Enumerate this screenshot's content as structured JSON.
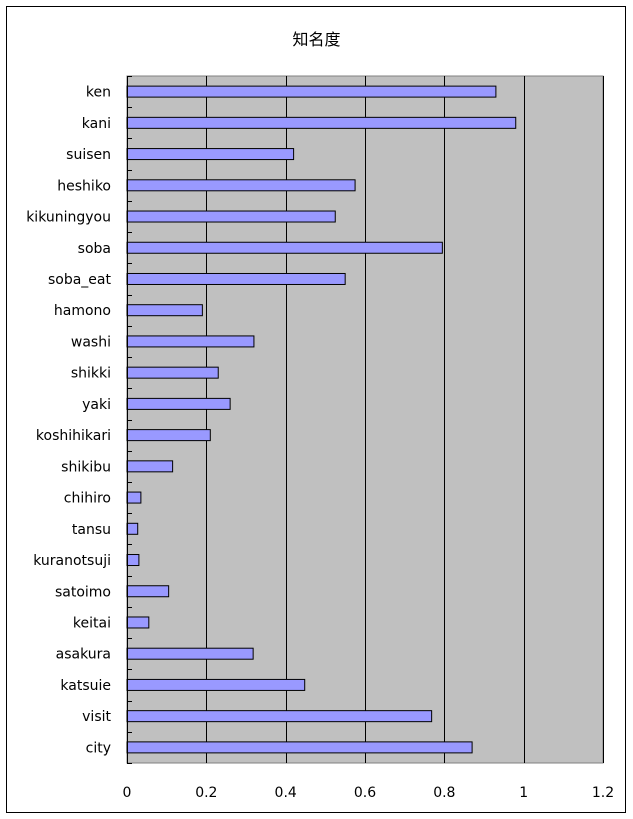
{
  "chart_data": {
    "type": "bar",
    "orientation": "horizontal",
    "title": "知名度",
    "categories": [
      "ken",
      "kani",
      "suisen",
      "heshiko",
      "kikuningyou",
      "soba",
      "soba_eat",
      "hamono",
      "washi",
      "shikki",
      "yaki",
      "koshihikari",
      "shikibu",
      "chihiro",
      "tansu",
      "kuranotsuji",
      "satoimo",
      "keitai",
      "asakura",
      "katsuie",
      "visit",
      "city"
    ],
    "values": [
      0.93,
      0.98,
      0.42,
      0.575,
      0.525,
      0.795,
      0.55,
      0.19,
      0.32,
      0.23,
      0.26,
      0.21,
      0.115,
      0.035,
      0.027,
      0.03,
      0.105,
      0.055,
      0.318,
      0.448,
      0.768,
      0.87
    ],
    "xlim": [
      0,
      1.2
    ],
    "xticks": [
      "0",
      "0.2",
      "0.4",
      "0.6",
      "0.8",
      "1",
      "1.2"
    ],
    "xlabel": "",
    "ylabel": "",
    "grid": true,
    "legend": "none",
    "colors": {
      "bar_fill": "#9999ff",
      "bar_stroke": "#000000",
      "plot_background": "#c0c0c0",
      "gridline": "#000000"
    }
  }
}
